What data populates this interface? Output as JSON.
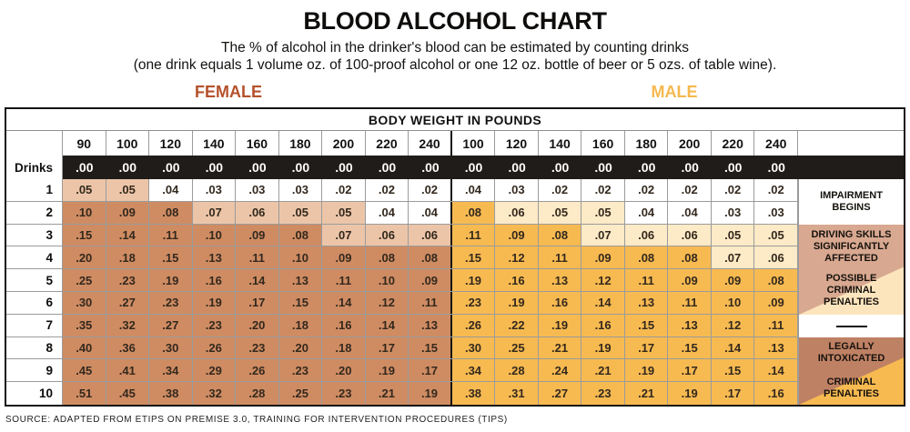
{
  "title": "BLOOD ALCOHOL CHART",
  "subtitle": {
    "line1": "The % of alcohol in the drinker's blood can be estimated by counting drinks",
    "line2": "(one drink equals 1 volume oz. of 100-proof alcohol or one 12 oz. bottle of beer or 5 ozs. of table wine)."
  },
  "gender_labels": {
    "female": "FEMALE",
    "male": "MALE"
  },
  "source": "SOURCE: ADAPTED FROM ETIPS ON PREMISE 3.0, TRAINING FOR INTERVENTION PROCEDURES (TIPS)",
  "colors": {
    "female_accent": "#b5512c",
    "male_accent": "#f6b84e",
    "female_mid_cell": "#ecc5a8",
    "female_high_cell": "#cf8c63",
    "male_mid_cell": "#fdeac6",
    "male_high_cell": "#f7ba51",
    "zero_row_bg": "#201c19",
    "annotation_pink": "#d8a890",
    "annotation_cream": "#fce4bd",
    "annotation_brown": "#bf8164",
    "annotation_orange": "#f7ba51"
  },
  "chart_data": {
    "type": "table",
    "header": "BODY WEIGHT IN POUNDS",
    "drinks_label": "Drinks",
    "female_weights": [
      "90",
      "100",
      "120",
      "140",
      "160",
      "180",
      "200",
      "220",
      "240"
    ],
    "male_weights": [
      "100",
      "120",
      "140",
      "160",
      "180",
      "200",
      "220",
      "240"
    ],
    "zero_value": ".00",
    "rows": [
      {
        "drinks": "1",
        "female": [
          ".05",
          ".05",
          ".04",
          ".03",
          ".03",
          ".03",
          ".02",
          ".02",
          ".02"
        ],
        "male": [
          ".04",
          ".03",
          ".02",
          ".02",
          ".02",
          ".02",
          ".02",
          ".02"
        ]
      },
      {
        "drinks": "2",
        "female": [
          ".10",
          ".09",
          ".08",
          ".07",
          ".06",
          ".05",
          ".05",
          ".04",
          ".04"
        ],
        "male": [
          ".08",
          ".06",
          ".05",
          ".05",
          ".04",
          ".04",
          ".03",
          ".03"
        ]
      },
      {
        "drinks": "3",
        "female": [
          ".15",
          ".14",
          ".11",
          ".10",
          ".09",
          ".08",
          ".07",
          ".06",
          ".06"
        ],
        "male": [
          ".11",
          ".09",
          ".08",
          ".07",
          ".06",
          ".06",
          ".05",
          ".05"
        ]
      },
      {
        "drinks": "4",
        "female": [
          ".20",
          ".18",
          ".15",
          ".13",
          ".11",
          ".10",
          ".09",
          ".08",
          ".08"
        ],
        "male": [
          ".15",
          ".12",
          ".11",
          ".09",
          ".08",
          ".08",
          ".07",
          ".06"
        ]
      },
      {
        "drinks": "5",
        "female": [
          ".25",
          ".23",
          ".19",
          ".16",
          ".14",
          ".13",
          ".11",
          ".10",
          ".09"
        ],
        "male": [
          ".19",
          ".16",
          ".13",
          ".12",
          ".11",
          ".09",
          ".09",
          ".08"
        ]
      },
      {
        "drinks": "6",
        "female": [
          ".30",
          ".27",
          ".23",
          ".19",
          ".17",
          ".15",
          ".14",
          ".12",
          ".11"
        ],
        "male": [
          ".23",
          ".19",
          ".16",
          ".14",
          ".13",
          ".11",
          ".10",
          ".09"
        ]
      },
      {
        "drinks": "7",
        "female": [
          ".35",
          ".32",
          ".27",
          ".23",
          ".20",
          ".18",
          ".16",
          ".14",
          ".13"
        ],
        "male": [
          ".26",
          ".22",
          ".19",
          ".16",
          ".15",
          ".13",
          ".12",
          ".11"
        ]
      },
      {
        "drinks": "8",
        "female": [
          ".40",
          ".36",
          ".30",
          ".26",
          ".23",
          ".20",
          ".18",
          ".17",
          ".15"
        ],
        "male": [
          ".30",
          ".25",
          ".21",
          ".19",
          ".17",
          ".15",
          ".14",
          ".13"
        ]
      },
      {
        "drinks": "9",
        "female": [
          ".45",
          ".41",
          ".34",
          ".29",
          ".26",
          ".23",
          ".20",
          ".19",
          ".17"
        ],
        "male": [
          ".34",
          ".28",
          ".24",
          ".21",
          ".19",
          ".17",
          ".15",
          ".14"
        ]
      },
      {
        "drinks": "10",
        "female": [
          ".51",
          ".45",
          ".38",
          ".32",
          ".28",
          ".25",
          ".23",
          ".21",
          ".19"
        ],
        "male": [
          ".38",
          ".31",
          ".27",
          ".23",
          ".21",
          ".19",
          ".17",
          ".16"
        ]
      }
    ],
    "shading_thresholds": {
      "mid_min": 0.05,
      "high_min": 0.08
    },
    "annotations": {
      "impairment": "IMPAIRMENT\nBEGINS",
      "driving_skills": "DRIVING SKILLS\nSIGNIFICANTLY\nAFFECTED",
      "possible_criminal": "POSSIBLE\nCRIMINAL\nPENALTIES",
      "legally_intoxicated": "LEGALLY\nINTOXICATED",
      "criminal_penalties": "CRIMINAL\nPENALTIES"
    }
  }
}
